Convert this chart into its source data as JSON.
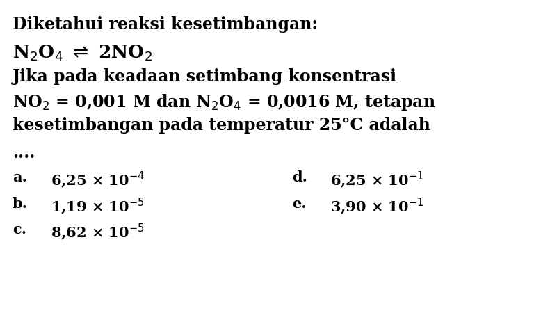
{
  "background_color": "#ffffff",
  "title_line": "Diketahui reaksi kesetimbangan:",
  "body_line1": "Jika pada keadaan setimbang konsentrasi",
  "body_line2": "NO$_2$ = 0,001 M dan N$_2$O$_4$ = 0,0016 M, tetapan",
  "body_line3": "kesetimbangan pada temperatur 25°C adalah",
  "dots_line": "....",
  "option_a_label": "a.",
  "option_a_value": "6,25 × 10$^{-4}$",
  "option_b_label": "b.",
  "option_b_value": "1,19 × 10$^{-5}$",
  "option_c_label": "c.",
  "option_c_value": "8,62 × 10$^{-5}$",
  "option_d_label": "d.",
  "option_d_value": "6,25 × 10$^{-1}$",
  "option_e_label": "e.",
  "option_e_value": "3,90 × 10$^{-1}$",
  "font_size_title": 17,
  "font_size_body": 17,
  "font_size_reaction": 19,
  "font_size_options": 15,
  "text_color": "#000000",
  "fig_width": 7.91,
  "fig_height": 4.63,
  "dpi": 100
}
